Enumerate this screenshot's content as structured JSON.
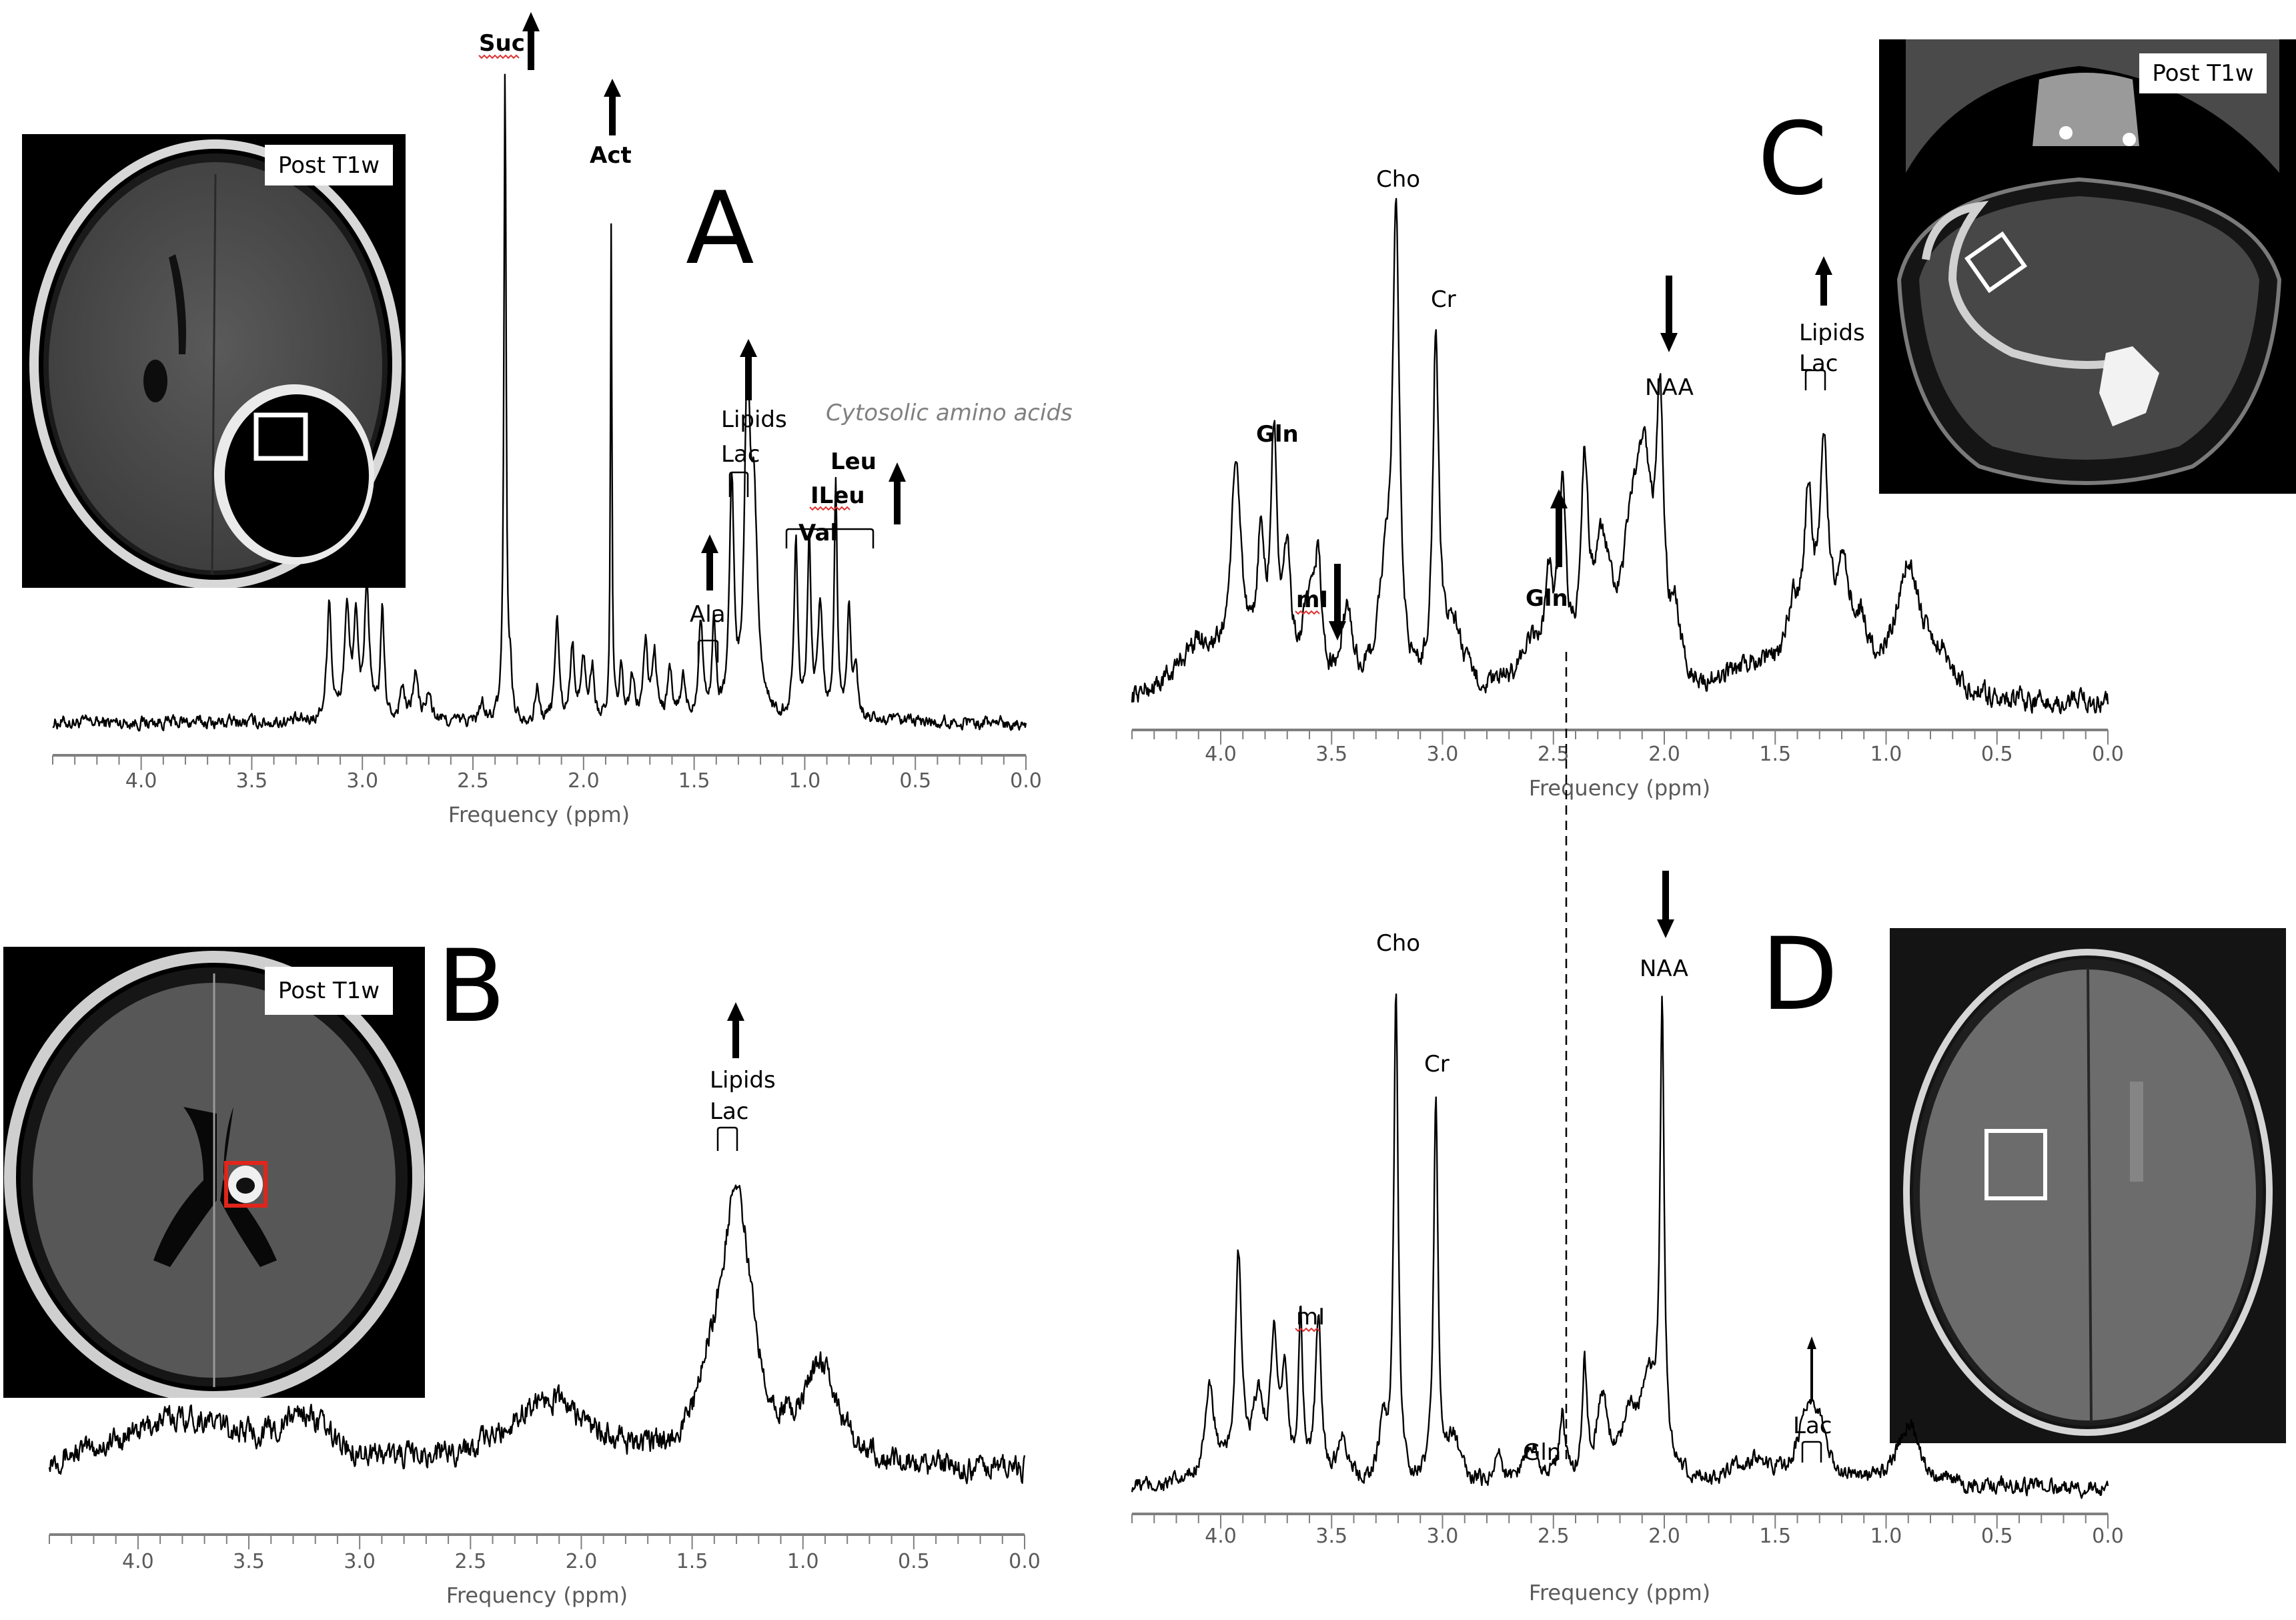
{
  "figure": {
    "panels": {
      "A": {
        "letter": "A",
        "mri_label": "Post T1w"
      },
      "B": {
        "letter": "B",
        "mri_label": "Post T1w"
      },
      "C": {
        "letter": "C",
        "mri_label": "Post T1w"
      },
      "D": {
        "letter": "D"
      }
    },
    "colors": {
      "spectrum": "#000000",
      "axis": "#7f7f7f",
      "tick_text": "#5a5a5a",
      "annotation_gray": "#808080",
      "roi_white": "#ffffff",
      "roi_red": "#e0251b",
      "spellcheck": "#e03030"
    }
  },
  "chart_data": [
    {
      "id": "A",
      "type": "line",
      "title": "",
      "xlabel": "Frequency (ppm)",
      "ylabel": "",
      "xlim": [
        4.4,
        0.0
      ],
      "x_reversed": true,
      "ylim": [
        0,
        100
      ],
      "grid": false,
      "xticks": [
        "4.0",
        "3.5",
        "3.0",
        "2.5",
        "2.0",
        "1.5",
        "1.0",
        "0.5",
        "0.0"
      ],
      "baseline": 3,
      "noise": 1.1,
      "peaks": [
        {
          "ppm": 3.15,
          "height": 18,
          "width": 0.012
        },
        {
          "ppm": 3.07,
          "height": 16,
          "width": 0.014
        },
        {
          "ppm": 3.03,
          "height": 14,
          "width": 0.012
        },
        {
          "ppm": 2.98,
          "height": 20,
          "width": 0.013
        },
        {
          "ppm": 2.91,
          "height": 16,
          "width": 0.01
        },
        {
          "ppm": 2.82,
          "height": 5,
          "width": 0.012
        },
        {
          "ppm": 2.76,
          "height": 7,
          "width": 0.014
        },
        {
          "ppm": 2.7,
          "height": 4,
          "width": 0.014
        },
        {
          "ppm": 2.46,
          "height": 3,
          "width": 0.01
        },
        {
          "ppm": 2.355,
          "height": 98,
          "width": 0.006
        },
        {
          "ppm": 2.33,
          "height": 6,
          "width": 0.008
        },
        {
          "ppm": 2.21,
          "height": 5,
          "width": 0.01
        },
        {
          "ppm": 2.12,
          "height": 16,
          "width": 0.01
        },
        {
          "ppm": 2.05,
          "height": 11,
          "width": 0.012
        },
        {
          "ppm": 2.0,
          "height": 9,
          "width": 0.012
        },
        {
          "ppm": 1.96,
          "height": 8,
          "width": 0.01
        },
        {
          "ppm": 1.875,
          "height": 74,
          "width": 0.004
        },
        {
          "ppm": 1.83,
          "height": 7,
          "width": 0.01
        },
        {
          "ppm": 1.78,
          "height": 6,
          "width": 0.012
        },
        {
          "ppm": 1.72,
          "height": 11,
          "width": 0.012
        },
        {
          "ppm": 1.68,
          "height": 10,
          "width": 0.012
        },
        {
          "ppm": 1.61,
          "height": 7,
          "width": 0.012
        },
        {
          "ppm": 1.55,
          "height": 6,
          "width": 0.012
        },
        {
          "ppm": 1.47,
          "height": 15,
          "width": 0.012
        },
        {
          "ppm": 1.41,
          "height": 14,
          "width": 0.01
        },
        {
          "ppm": 1.33,
          "height": 34,
          "width": 0.012
        },
        {
          "ppm": 1.26,
          "height": 46,
          "width": 0.014
        },
        {
          "ppm": 1.23,
          "height": 30,
          "width": 0.02
        },
        {
          "ppm": 1.04,
          "height": 26,
          "width": 0.01
        },
        {
          "ppm": 0.98,
          "height": 26,
          "width": 0.01
        },
        {
          "ppm": 0.93,
          "height": 17,
          "width": 0.012
        },
        {
          "ppm": 0.86,
          "height": 35,
          "width": 0.008
        },
        {
          "ppm": 0.8,
          "height": 17,
          "width": 0.01
        },
        {
          "ppm": 0.77,
          "height": 8,
          "width": 0.01
        }
      ],
      "annotations": [
        {
          "text": "Suc",
          "ppm": 2.355,
          "bold": true,
          "arrow": "up",
          "spellcheck": true
        },
        {
          "text": "Act",
          "ppm": 1.875,
          "bold": true,
          "arrow": "up"
        },
        {
          "text": "Lipids",
          "ppm": 1.3
        },
        {
          "text": "Lac",
          "ppm": 1.3,
          "bracket": [
            1.36,
            1.27
          ],
          "arrow": "up"
        },
        {
          "text": "Cytosolic amino acids",
          "style": "italic-gray"
        },
        {
          "text": "Leu",
          "bold": true,
          "arrow": "up"
        },
        {
          "text": "ILeu",
          "bold": true,
          "spellcheck": true
        },
        {
          "text": "Val",
          "bold": true,
          "bracket": [
            1.09,
            0.7
          ]
        },
        {
          "text": "Ala",
          "ppm": 1.45,
          "bracket": [
            1.49,
            1.4
          ],
          "arrow": "up"
        }
      ]
    },
    {
      "id": "B",
      "type": "line",
      "title": "",
      "xlabel": "Frequency (ppm)",
      "ylabel": "",
      "xlim": [
        4.4,
        0.0
      ],
      "x_reversed": true,
      "ylim": [
        0,
        100
      ],
      "grid": false,
      "xticks": [
        "4.0",
        "3.5",
        "3.0",
        "2.5",
        "2.0",
        "1.5",
        "1.0",
        "0.5",
        "0.0"
      ],
      "baseline": 6,
      "noise": 3.2,
      "broad": [
        {
          "ppm": 3.8,
          "height": 12,
          "width": 0.35
        },
        {
          "ppm": 3.25,
          "height": 10,
          "width": 0.12
        },
        {
          "ppm": 2.15,
          "height": 16,
          "width": 0.22
        },
        {
          "ppm": 1.3,
          "height": 62,
          "width": 0.085
        },
        {
          "ppm": 1.42,
          "height": 10,
          "width": 0.06
        },
        {
          "ppm": 0.92,
          "height": 22,
          "width": 0.09
        }
      ],
      "annotations": [
        {
          "text": "Lipids",
          "ppm": 1.3,
          "arrow": "up"
        },
        {
          "text": "Lac",
          "ppm": 1.3,
          "bracket": [
            1.38,
            1.29
          ]
        }
      ]
    },
    {
      "id": "C",
      "type": "line",
      "title": "",
      "xlabel": "Frequency (ppm)",
      "ylabel": "",
      "xlim": [
        4.4,
        0.0
      ],
      "x_reversed": true,
      "ylim": [
        0,
        100
      ],
      "grid": false,
      "xticks": [
        "4.0",
        "3.5",
        "3.0",
        "2.5",
        "2.0",
        "1.5",
        "1.0",
        "0.5",
        "0.0"
      ],
      "baseline": 3,
      "noise": 2.2,
      "broad": [
        {
          "ppm": 4.1,
          "height": 10,
          "width": 0.12
        },
        {
          "ppm": 3.93,
          "height": 38,
          "width": 0.03
        },
        {
          "ppm": 3.82,
          "height": 24,
          "width": 0.02
        },
        {
          "ppm": 3.76,
          "height": 43,
          "width": 0.018
        },
        {
          "ppm": 3.7,
          "height": 22,
          "width": 0.02
        },
        {
          "ppm": 3.6,
          "height": 14,
          "width": 0.04
        },
        {
          "ppm": 3.56,
          "height": 20,
          "width": 0.015
        },
        {
          "ppm": 3.43,
          "height": 14,
          "width": 0.03
        },
        {
          "ppm": 3.21,
          "height": 82,
          "width": 0.018
        },
        {
          "ppm": 3.26,
          "height": 18,
          "width": 0.04
        },
        {
          "ppm": 3.03,
          "height": 63,
          "width": 0.016
        },
        {
          "ppm": 2.95,
          "height": 12,
          "width": 0.05
        },
        {
          "ppm": 2.6,
          "height": 8,
          "width": 0.08
        },
        {
          "ppm": 2.52,
          "height": 16,
          "width": 0.02
        },
        {
          "ppm": 2.46,
          "height": 34,
          "width": 0.02
        },
        {
          "ppm": 2.36,
          "height": 35,
          "width": 0.02
        },
        {
          "ppm": 2.28,
          "height": 24,
          "width": 0.05
        },
        {
          "ppm": 2.15,
          "height": 22,
          "width": 0.04
        },
        {
          "ppm": 2.09,
          "height": 36,
          "width": 0.04
        },
        {
          "ppm": 2.02,
          "height": 46,
          "width": 0.02
        },
        {
          "ppm": 1.95,
          "height": 10,
          "width": 0.03
        },
        {
          "ppm": 1.6,
          "height": 6,
          "width": 0.12
        },
        {
          "ppm": 1.42,
          "height": 12,
          "width": 0.04
        },
        {
          "ppm": 1.35,
          "height": 30,
          "width": 0.025
        },
        {
          "ppm": 1.28,
          "height": 40,
          "width": 0.022
        },
        {
          "ppm": 1.2,
          "height": 18,
          "width": 0.04
        },
        {
          "ppm": 1.12,
          "height": 10,
          "width": 0.05
        },
        {
          "ppm": 0.9,
          "height": 24,
          "width": 0.07
        },
        {
          "ppm": 0.75,
          "height": 6,
          "width": 0.06
        }
      ],
      "annotations": [
        {
          "text": "Gln",
          "ppm": 3.76,
          "bold": true
        },
        {
          "text": "mI",
          "ppm": 3.56,
          "bold": true,
          "arrow": "down",
          "spellcheck": true
        },
        {
          "text": "Cho",
          "ppm": 3.21
        },
        {
          "text": "Cr",
          "ppm": 3.03
        },
        {
          "text": "Gln",
          "ppm": 2.46,
          "bold": true,
          "arrow": "up"
        },
        {
          "text": "NAA",
          "ppm": 2.02,
          "arrow": "down"
        },
        {
          "text": "Lipids",
          "ppm": 1.3,
          "arrow": "up"
        },
        {
          "text": "Lac",
          "ppm": 1.3,
          "bracket": [
            1.36,
            1.27
          ]
        }
      ],
      "reference_line_ppm": 2.44
    },
    {
      "id": "D",
      "type": "line",
      "title": "",
      "xlabel": "Frequency (ppm)",
      "ylabel": "",
      "xlim": [
        4.4,
        0.0
      ],
      "x_reversed": true,
      "ylim": [
        0,
        100
      ],
      "grid": false,
      "xticks": [
        "4.0",
        "3.5",
        "3.0",
        "2.5",
        "2.0",
        "1.5",
        "1.0",
        "0.5",
        "0.0"
      ],
      "baseline": 3,
      "noise": 1.6,
      "broad": [
        {
          "ppm": 4.05,
          "height": 16,
          "width": 0.03
        },
        {
          "ppm": 3.92,
          "height": 38,
          "width": 0.018
        },
        {
          "ppm": 3.83,
          "height": 14,
          "width": 0.03
        },
        {
          "ppm": 3.76,
          "height": 24,
          "width": 0.018
        },
        {
          "ppm": 3.71,
          "height": 18,
          "width": 0.015
        },
        {
          "ppm": 3.64,
          "height": 28,
          "width": 0.012
        },
        {
          "ppm": 3.56,
          "height": 28,
          "width": 0.016
        },
        {
          "ppm": 3.45,
          "height": 8,
          "width": 0.03
        },
        {
          "ppm": 3.27,
          "height": 10,
          "width": 0.02
        },
        {
          "ppm": 3.21,
          "height": 85,
          "width": 0.012
        },
        {
          "ppm": 3.03,
          "height": 67,
          "width": 0.012
        },
        {
          "ppm": 2.95,
          "height": 8,
          "width": 0.03
        },
        {
          "ppm": 2.75,
          "height": 5,
          "width": 0.02
        },
        {
          "ppm": 2.6,
          "height": 7,
          "width": 0.04
        },
        {
          "ppm": 2.46,
          "height": 12,
          "width": 0.015
        },
        {
          "ppm": 2.36,
          "height": 20,
          "width": 0.012
        },
        {
          "ppm": 2.28,
          "height": 14,
          "width": 0.03
        },
        {
          "ppm": 2.16,
          "height": 10,
          "width": 0.04
        },
        {
          "ppm": 2.07,
          "height": 16,
          "width": 0.05
        },
        {
          "ppm": 2.01,
          "height": 79,
          "width": 0.011
        },
        {
          "ppm": 1.6,
          "height": 4,
          "width": 0.1
        },
        {
          "ppm": 1.36,
          "height": 10,
          "width": 0.05
        },
        {
          "ppm": 1.3,
          "height": 8,
          "width": 0.04
        },
        {
          "ppm": 0.9,
          "height": 11,
          "width": 0.06
        }
      ],
      "annotations": [
        {
          "text": "mI",
          "ppm": 3.6,
          "spellcheck": true
        },
        {
          "text": "Cho",
          "ppm": 3.21
        },
        {
          "text": "Cr",
          "ppm": 3.03
        },
        {
          "text": "Gln",
          "ppm": 2.46
        },
        {
          "text": "NAA",
          "ppm": 2.01,
          "arrow": "down"
        },
        {
          "text": "Lac",
          "ppm": 1.33,
          "bracket": [
            1.38,
            1.29
          ],
          "arrow": "up"
        }
      ],
      "reference_line_ppm": 2.44
    }
  ],
  "labels": {
    "A": {
      "suc": "Suc",
      "act": "Act",
      "lipids": "Lipids",
      "lac": "Lac",
      "cytosolic": "Cytosolic amino acids",
      "leu": "Leu",
      "ileu": "ILeu",
      "val": "Val",
      "ala": "Ala",
      "xlabel": "Frequency (ppm)",
      "ticks": [
        "4.0",
        "3.5",
        "3.0",
        "2.5",
        "2.0",
        "1.5",
        "1.0",
        "0.5",
        "0.0"
      ]
    },
    "B": {
      "lipids": "Lipids",
      "lac": "Lac",
      "xlabel": "Frequency (ppm)",
      "ticks": [
        "4.0",
        "3.5",
        "3.0",
        "2.5",
        "2.0",
        "1.5",
        "1.0",
        "0.5",
        "0.0"
      ]
    },
    "C": {
      "gln1": "Gln",
      "mi": "mI",
      "cho": "Cho",
      "cr": "Cr",
      "gln2": "Gln",
      "naa": "NAA",
      "lipids": "Lipids",
      "lac": "Lac",
      "xlabel": "Frequency (ppm)",
      "ticks": [
        "4.0",
        "3.5",
        "3.0",
        "2.5",
        "2.0",
        "1.5",
        "1.0",
        "0.5",
        "0.0"
      ]
    },
    "D": {
      "mi": "mI",
      "cho": "Cho",
      "cr": "Cr",
      "gln": "Gln",
      "naa": "NAA",
      "lac": "Lac",
      "xlabel": "Frequency (ppm)",
      "ticks": [
        "4.0",
        "3.5",
        "3.0",
        "2.5",
        "2.0",
        "1.5",
        "1.0",
        "0.5",
        "0.0"
      ]
    }
  }
}
